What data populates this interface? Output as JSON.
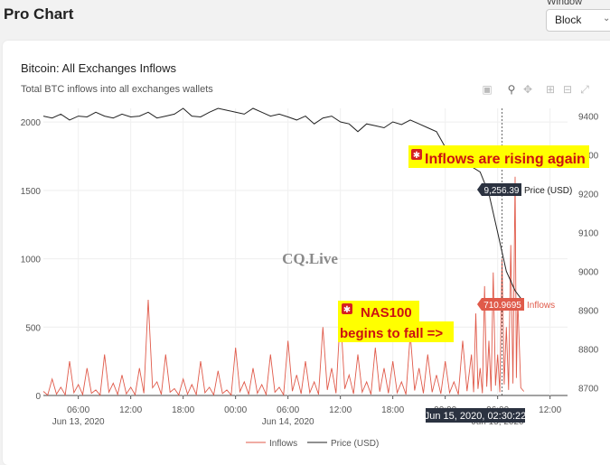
{
  "app": {
    "title": "Pro Chart"
  },
  "window_selector": {
    "label": "Window",
    "value": "Block"
  },
  "chart_panel": {
    "title": "Bitcoin: All Exchanges Inflows",
    "subtitle": "Total BTC inflows into all exchanges wallets"
  },
  "toolbar": {
    "icons": [
      "camera-icon",
      "zoom-icon",
      "pan-icon",
      "zoom-in-icon",
      "zoom-out-icon",
      "reset-axes-icon"
    ]
  },
  "watermark": "CQ.Live",
  "annotations": {
    "inflows_rising": "Inflows are rising again",
    "nas_line1": "NAS100",
    "nas_line2": "begins to fall =>"
  },
  "hover": {
    "price_label": "9,256.39",
    "price_series": "Price (USD)",
    "inflow_label": "710.9695",
    "inflow_series": "Inflows",
    "time_label": "Jun 15, 2020, 02:30:22"
  },
  "colors": {
    "inflows": "#e05a4a",
    "price": "#222222",
    "highlight": "#ffff00",
    "annotation_text": "#cc1111",
    "price_tag": "#2b3240",
    "inflow_tag": "#e05a4a"
  },
  "chart_data": {
    "type": "line",
    "x_ticks": [
      "06:00",
      "12:00",
      "18:00",
      "00:00",
      "06:00",
      "12:00",
      "18:00",
      "00:00",
      "06:00",
      "12:00"
    ],
    "x_subticks": [
      "Jun 13, 2020",
      "Jun 14, 2020",
      "Jun 15, 2020"
    ],
    "y_left_ticks": [
      "0",
      "500",
      "1000",
      "1500",
      "2000"
    ],
    "y_left_range": [
      0,
      2100
    ],
    "y_right_ticks": [
      "8700",
      "8800",
      "8900",
      "9000",
      "9100",
      "9200",
      "9300",
      "9400"
    ],
    "y_right_range": [
      8680,
      9420
    ],
    "x_range_hours": [
      2,
      62
    ],
    "legend": {
      "placement": "bottom-center",
      "entries": [
        "Inflows",
        "Price (USD)"
      ]
    },
    "series": [
      {
        "name": "Inflows",
        "axis": "left",
        "hours": [
          2,
          3,
          4,
          5,
          6,
          7,
          8,
          9,
          10,
          11,
          12,
          13,
          14,
          15,
          16,
          17,
          18,
          19,
          20,
          21,
          22,
          23,
          24,
          25,
          26,
          27,
          28,
          29,
          30,
          31,
          32,
          33,
          34,
          35,
          36,
          37,
          38,
          39,
          40,
          41,
          42,
          43,
          44,
          45,
          46,
          47,
          48,
          49,
          50,
          51,
          51.5,
          52,
          52.5,
          53,
          53.5,
          54,
          54.5,
          55,
          55.5,
          56,
          56.3,
          57
        ],
        "values": [
          30,
          120,
          60,
          250,
          80,
          200,
          40,
          300,
          90,
          150,
          60,
          200,
          700,
          100,
          300,
          50,
          120,
          80,
          250,
          60,
          180,
          40,
          350,
          100,
          200,
          80,
          300,
          60,
          400,
          150,
          250,
          100,
          500,
          200,
          600,
          150,
          300,
          100,
          350,
          200,
          250,
          100,
          450,
          200,
          300,
          150,
          250,
          100,
          400,
          300,
          600,
          200,
          800,
          400,
          900,
          300,
          1000,
          500,
          1100,
          1600,
          700,
          30
        ]
      },
      {
        "name": "Price (USD)",
        "axis": "right",
        "hours": [
          2,
          3,
          4,
          5,
          6,
          7,
          8,
          9,
          10,
          11,
          12,
          13,
          14,
          15,
          16,
          17,
          18,
          19,
          20,
          21,
          22,
          23,
          24,
          25,
          26,
          27,
          28,
          29,
          30,
          31,
          32,
          33,
          34,
          35,
          36,
          37,
          38,
          39,
          40,
          41,
          42,
          43,
          44,
          45,
          46,
          47,
          48,
          49,
          50,
          51,
          52,
          53,
          54,
          55,
          56,
          57
        ],
        "values": [
          9400,
          9395,
          9405,
          9390,
          9400,
          9398,
          9410,
          9400,
          9395,
          9405,
          9398,
          9400,
          9410,
          9395,
          9400,
          9405,
          9420,
          9400,
          9398,
          9410,
          9420,
          9415,
          9410,
          9405,
          9420,
          9410,
          9400,
          9405,
          9398,
          9390,
          9400,
          9380,
          9395,
          9400,
          9385,
          9380,
          9360,
          9380,
          9375,
          9370,
          9385,
          9378,
          9390,
          9380,
          9370,
          9360,
          9320,
          9300,
          9285,
          9270,
          9256,
          9200,
          9100,
          9000,
          8950,
          8920
        ]
      }
    ]
  }
}
